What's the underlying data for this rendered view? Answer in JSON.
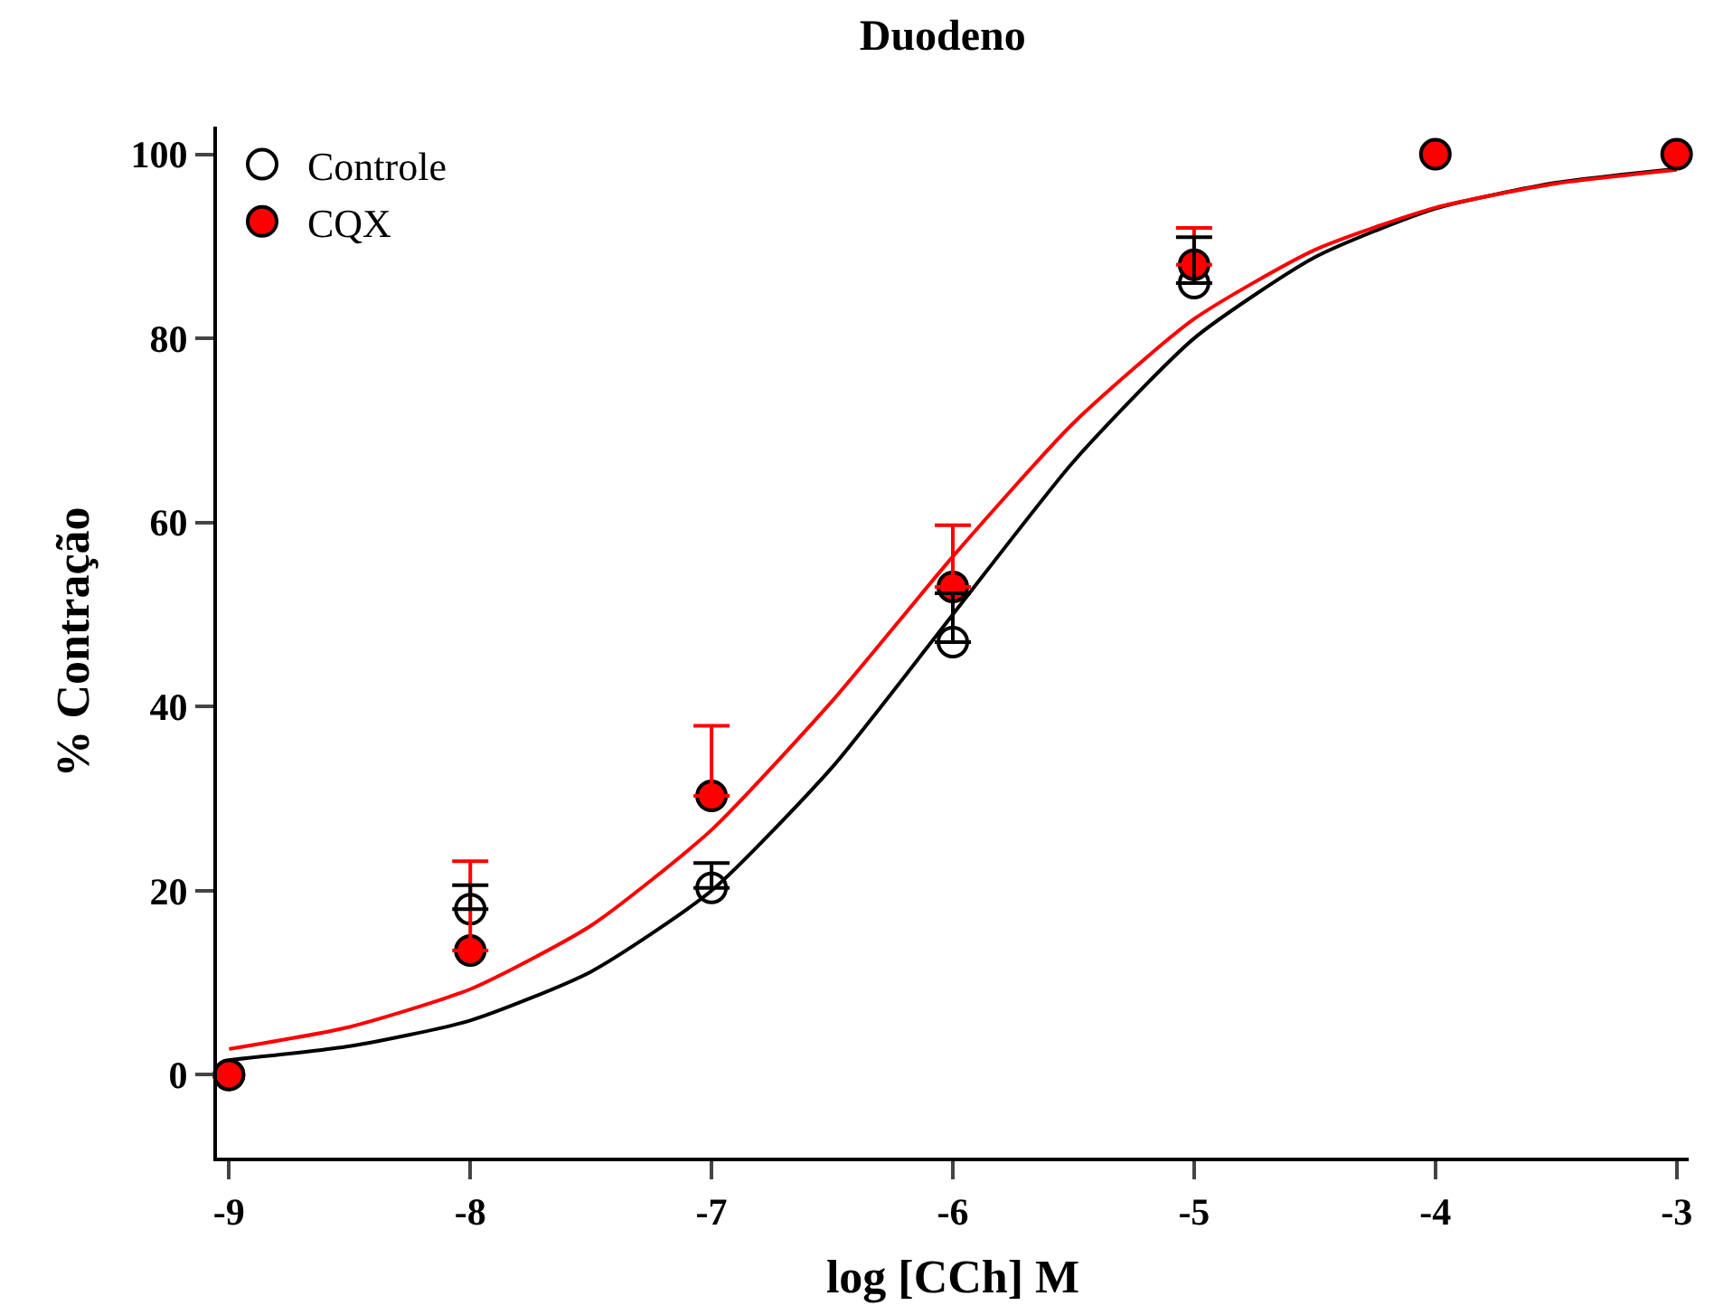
{
  "chart_data": {
    "type": "scatter",
    "title": "Duodeno",
    "xlabel": "log [CCh] M",
    "ylabel": "% Contração",
    "x": [
      -9,
      -8,
      -7,
      -6,
      -5,
      -4,
      -3
    ],
    "series": [
      {
        "name": "Controle",
        "color": "#000000",
        "marker": "circle",
        "values": [
          0,
          18,
          20.3,
          47,
          86,
          null,
          null
        ],
        "errors": [
          null,
          [
            18,
            20.6
          ],
          [
            20.3,
            23
          ],
          [
            47,
            52.3
          ],
          [
            86,
            91
          ],
          null,
          null
        ]
      },
      {
        "name": "CQX",
        "color": "#ff0000",
        "marker": "circle",
        "values": [
          0,
          13.5,
          30.3,
          53,
          88,
          100,
          100
        ],
        "errors": [
          null,
          [
            13.5,
            23.2
          ],
          [
            30.3,
            37.9
          ],
          [
            53,
            59.7
          ],
          [
            88,
            92
          ],
          null,
          null
        ]
      },
      {
        "type": "line",
        "color": "#000000",
        "x": [
          -9,
          -8.5,
          -8,
          -7.5,
          -7,
          -6.5,
          -6,
          -5.5,
          -5,
          -4.5,
          -4,
          -3.5,
          -3
        ],
        "values": [
          1.6,
          3.1,
          5.9,
          11.2,
          20,
          33.4,
          50,
          66.6,
          80,
          88.8,
          94.1,
          96.9,
          98.4
        ]
      },
      {
        "type": "line",
        "color": "#ff0000",
        "x": [
          -9,
          -8.5,
          -8,
          -7.5,
          -7,
          -6.5,
          -6,
          -5.5,
          -5,
          -4.5,
          -4,
          -3.5,
          -3
        ],
        "values": [
          2.8,
          5.2,
          9.3,
          16.2,
          26.6,
          40.6,
          56.3,
          70.8,
          82.1,
          89.6,
          94.2,
          96.8,
          98.3
        ]
      }
    ],
    "xlim": [
      -9.05,
      -2.95
    ],
    "xticks": [
      -9,
      -8,
      -7,
      -6,
      -5,
      -4,
      -3
    ],
    "ylim": [
      -9,
      103
    ],
    "yticks": [
      0,
      20,
      40,
      60,
      80,
      100
    ],
    "grid": false,
    "legend": "top left",
    "line_style": "solid"
  }
}
